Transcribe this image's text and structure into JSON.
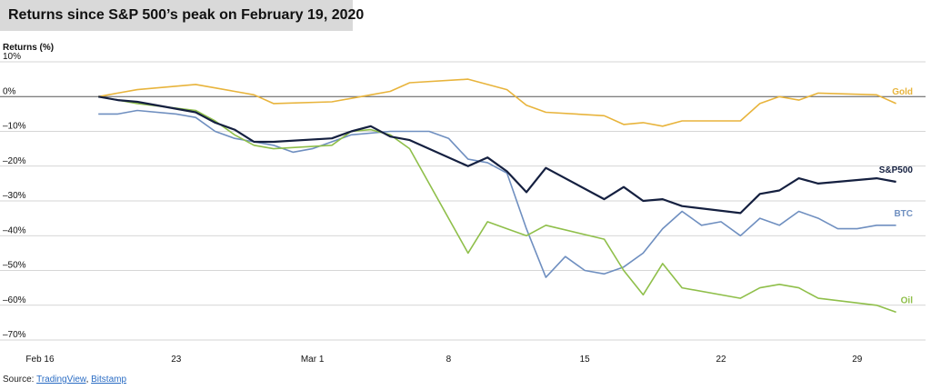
{
  "header": {
    "title": "Returns since S&P 500’s peak on February 19, 2020"
  },
  "footer": {
    "source_label": "Source:",
    "source_1": "TradingView",
    "separator": ", ",
    "source_2": "Bitstamp"
  },
  "chart_data": {
    "type": "line",
    "title": "Returns since S&P 500’s peak on February 19, 2020",
    "ylabel": "Returns (%)",
    "xlabel": "",
    "x_unit": "date (2020)",
    "ylim": [
      -70,
      10
    ],
    "xlim": [
      "2020-02-16",
      "2020-04-01"
    ],
    "y_ticks": [
      10,
      0,
      -10,
      -20,
      -30,
      -40,
      -50,
      -60,
      -70
    ],
    "y_tick_labels": [
      "10%",
      "0%",
      "–10%",
      "–20%",
      "–30%",
      "–40%",
      "–50%",
      "–60%",
      "–70%"
    ],
    "x_ticks": [
      "2020-02-16",
      "2020-02-23",
      "2020-03-01",
      "2020-03-08",
      "2020-03-15",
      "2020-03-22",
      "2020-03-29"
    ],
    "x_tick_labels": [
      "Feb 16",
      "23",
      "Mar 1",
      "8",
      "15",
      "22",
      "29"
    ],
    "grid": {
      "horizontal": true,
      "vertical": false
    },
    "series": [
      {
        "name": "Gold",
        "color": "#e8b43c",
        "x": [
          "2020-02-19",
          "2020-02-20",
          "2020-02-21",
          "2020-02-24",
          "2020-02-25",
          "2020-02-26",
          "2020-02-27",
          "2020-02-28",
          "2020-03-02",
          "2020-03-03",
          "2020-03-04",
          "2020-03-05",
          "2020-03-06",
          "2020-03-09",
          "2020-03-10",
          "2020-03-11",
          "2020-03-12",
          "2020-03-13",
          "2020-03-16",
          "2020-03-17",
          "2020-03-18",
          "2020-03-19",
          "2020-03-20",
          "2020-03-23",
          "2020-03-24",
          "2020-03-25",
          "2020-03-26",
          "2020-03-27",
          "2020-03-30",
          "2020-03-31"
        ],
        "y": [
          0.0,
          1.0,
          2.0,
          3.5,
          2.5,
          1.5,
          0.5,
          -2.0,
          -1.5,
          -0.5,
          0.5,
          1.5,
          4.0,
          5.0,
          3.5,
          2.0,
          -2.5,
          -4.5,
          -5.5,
          -8.0,
          -7.5,
          -8.5,
          -7.0,
          -7.0,
          -2.0,
          0.0,
          -1.0,
          1.0,
          0.5,
          -2.0
        ]
      },
      {
        "name": "S&P500",
        "color": "#152040",
        "x": [
          "2020-02-19",
          "2020-02-20",
          "2020-02-21",
          "2020-02-24",
          "2020-02-25",
          "2020-02-26",
          "2020-02-27",
          "2020-02-28",
          "2020-03-02",
          "2020-03-03",
          "2020-03-04",
          "2020-03-05",
          "2020-03-06",
          "2020-03-09",
          "2020-03-10",
          "2020-03-11",
          "2020-03-12",
          "2020-03-13",
          "2020-03-16",
          "2020-03-17",
          "2020-03-18",
          "2020-03-19",
          "2020-03-20",
          "2020-03-23",
          "2020-03-24",
          "2020-03-25",
          "2020-03-26",
          "2020-03-27",
          "2020-03-30",
          "2020-03-31"
        ],
        "y": [
          0.0,
          -1.0,
          -1.5,
          -4.5,
          -7.5,
          -9.5,
          -13.0,
          -13.0,
          -12.0,
          -10.0,
          -8.5,
          -11.5,
          -12.5,
          -20.0,
          -17.5,
          -21.5,
          -27.5,
          -20.5,
          -29.5,
          -26.0,
          -30.0,
          -29.5,
          -31.5,
          -33.5,
          -28.0,
          -27.0,
          -23.5,
          -25.0,
          -23.5,
          -24.5
        ]
      },
      {
        "name": "BTC",
        "color": "#6f8fc0",
        "x": [
          "2020-02-19",
          "2020-02-20",
          "2020-02-21",
          "2020-02-23",
          "2020-02-24",
          "2020-02-25",
          "2020-02-26",
          "2020-02-27",
          "2020-02-28",
          "2020-02-29",
          "2020-03-01",
          "2020-03-03",
          "2020-03-05",
          "2020-03-07",
          "2020-03-08",
          "2020-03-09",
          "2020-03-10",
          "2020-03-11",
          "2020-03-12",
          "2020-03-13",
          "2020-03-14",
          "2020-03-15",
          "2020-03-16",
          "2020-03-17",
          "2020-03-18",
          "2020-03-19",
          "2020-03-20",
          "2020-03-21",
          "2020-03-22",
          "2020-03-23",
          "2020-03-24",
          "2020-03-25",
          "2020-03-26",
          "2020-03-27",
          "2020-03-28",
          "2020-03-29",
          "2020-03-30",
          "2020-03-31"
        ],
        "y": [
          -5.0,
          -5.0,
          -4.0,
          -5.0,
          -6.0,
          -10.0,
          -12.0,
          -13.0,
          -14.0,
          -16.0,
          -15.0,
          -11.0,
          -10.0,
          -10.0,
          -12.0,
          -18.0,
          -19.0,
          -22.0,
          -38.0,
          -52.0,
          -46.0,
          -50.0,
          -51.0,
          -49.0,
          -45.0,
          -38.0,
          -33.0,
          -37.0,
          -36.0,
          -40.0,
          -35.0,
          -37.0,
          -33.0,
          -35.0,
          -38.0,
          -38.0,
          -37.0,
          -37.0
        ]
      },
      {
        "name": "Oil",
        "color": "#8fbf4a",
        "x": [
          "2020-02-19",
          "2020-02-20",
          "2020-02-21",
          "2020-02-24",
          "2020-02-25",
          "2020-02-26",
          "2020-02-27",
          "2020-02-28",
          "2020-03-02",
          "2020-03-03",
          "2020-03-04",
          "2020-03-05",
          "2020-03-06",
          "2020-03-09",
          "2020-03-10",
          "2020-03-11",
          "2020-03-12",
          "2020-03-13",
          "2020-03-16",
          "2020-03-17",
          "2020-03-18",
          "2020-03-19",
          "2020-03-20",
          "2020-03-23",
          "2020-03-24",
          "2020-03-25",
          "2020-03-26",
          "2020-03-27",
          "2020-03-30",
          "2020-03-31"
        ],
        "y": [
          0.0,
          -1.0,
          -2.0,
          -4.0,
          -7.0,
          -11.0,
          -14.0,
          -15.0,
          -14.0,
          -10.0,
          -9.5,
          -11.0,
          -15.0,
          -45.0,
          -36.0,
          -38.0,
          -40.0,
          -37.0,
          -41.0,
          -50.0,
          -57.0,
          -48.0,
          -55.0,
          -58.0,
          -55.0,
          -54.0,
          -55.0,
          -58.0,
          -60.0,
          -62.0
        ]
      }
    ]
  }
}
